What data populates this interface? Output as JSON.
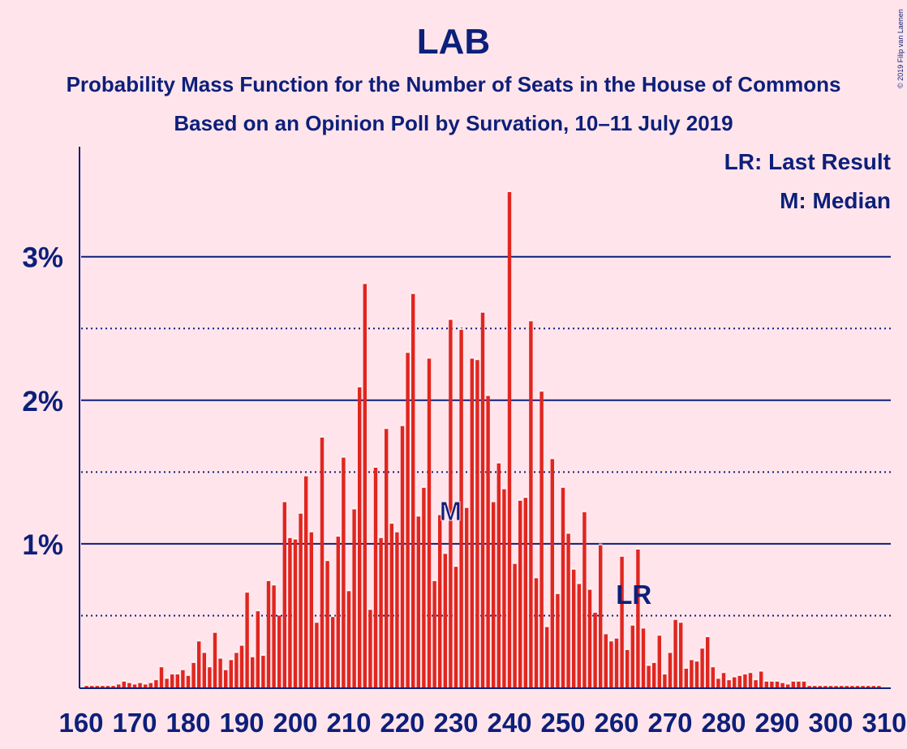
{
  "title": "LAB",
  "subtitle_1": "Probability Mass Function for the Number of Seats in the House of Commons",
  "subtitle_2": "Based on an Opinion Poll by Survation, 10–11 July 2019",
  "credit": "© 2019 Filip van Laenen",
  "legend": {
    "last_result": "LR: Last Result",
    "median": "M: Median"
  },
  "markers": {
    "last_result_label": "LR",
    "median_label": "M"
  },
  "colors": {
    "background": "#FFE5EB",
    "bar": "#E0261F",
    "axis": "#0D1F7A"
  },
  "chart_data": {
    "type": "bar",
    "title": "LAB",
    "xlabel": "",
    "ylabel": "",
    "x_range": [
      160,
      310
    ],
    "ylim": [
      0,
      3.77
    ],
    "y_unit": "%",
    "y_ticks": [
      {
        "value": 1,
        "label": "1%"
      },
      {
        "value": 2,
        "label": "2%"
      },
      {
        "value": 3,
        "label": "3%"
      }
    ],
    "y_minor_gridlines": [
      0.5,
      1.5,
      2.5
    ],
    "x_ticks": [
      {
        "value": 160,
        "label": "160"
      },
      {
        "value": 170,
        "label": "170"
      },
      {
        "value": 180,
        "label": "180"
      },
      {
        "value": 190,
        "label": "190"
      },
      {
        "value": 200,
        "label": "200"
      },
      {
        "value": 210,
        "label": "210"
      },
      {
        "value": 220,
        "label": "220"
      },
      {
        "value": 230,
        "label": "230"
      },
      {
        "value": 240,
        "label": "240"
      },
      {
        "value": 250,
        "label": "250"
      },
      {
        "value": 260,
        "label": "260"
      },
      {
        "value": 270,
        "label": "270"
      },
      {
        "value": 280,
        "label": "280"
      },
      {
        "value": 290,
        "label": "290"
      },
      {
        "value": 300,
        "label": "300"
      },
      {
        "value": 310,
        "label": "310"
      }
    ],
    "last_result": 262,
    "median": 229,
    "seats_start": 161,
    "values": [
      0.01,
      0.01,
      0.01,
      0.01,
      0.01,
      0.01,
      0.02,
      0.04,
      0.03,
      0.02,
      0.03,
      0.02,
      0.03,
      0.05,
      0.14,
      0.06,
      0.09,
      0.09,
      0.12,
      0.08,
      0.17,
      0.32,
      0.24,
      0.14,
      0.38,
      0.2,
      0.12,
      0.19,
      0.24,
      0.29,
      0.66,
      0.21,
      0.53,
      0.22,
      0.74,
      0.71,
      0.5,
      1.29,
      1.04,
      1.03,
      1.21,
      1.47,
      1.08,
      0.45,
      1.74,
      0.88,
      0.49,
      1.05,
      1.6,
      0.67,
      1.24,
      2.09,
      2.81,
      0.54,
      1.53,
      1.04,
      1.8,
      1.14,
      1.08,
      1.82,
      2.33,
      2.74,
      1.19,
      1.39,
      2.29,
      0.74,
      1.2,
      0.93,
      2.56,
      0.84,
      2.49,
      1.25,
      2.29,
      2.28,
      2.61,
      2.03,
      1.29,
      1.56,
      1.38,
      3.45,
      0.86,
      1.3,
      1.32,
      2.55,
      0.76,
      2.06,
      0.42,
      1.59,
      0.65,
      1.39,
      1.07,
      0.82,
      0.72,
      1.22,
      0.68,
      0.52,
      0.99,
      0.37,
      0.32,
      0.34,
      0.91,
      0.26,
      0.43,
      0.96,
      0.41,
      0.15,
      0.17,
      0.36,
      0.09,
      0.24,
      0.47,
      0.45,
      0.13,
      0.19,
      0.18,
      0.27,
      0.35,
      0.14,
      0.06,
      0.1,
      0.05,
      0.07,
      0.08,
      0.09,
      0.1,
      0.05,
      0.11,
      0.04,
      0.04,
      0.04,
      0.03,
      0.02,
      0.04,
      0.04,
      0.04,
      0.01,
      0.01,
      0.01,
      0.01,
      0.01,
      0.01,
      0.01,
      0.01,
      0.01,
      0.01,
      0.01,
      0.01,
      0.01,
      0.01
    ]
  }
}
